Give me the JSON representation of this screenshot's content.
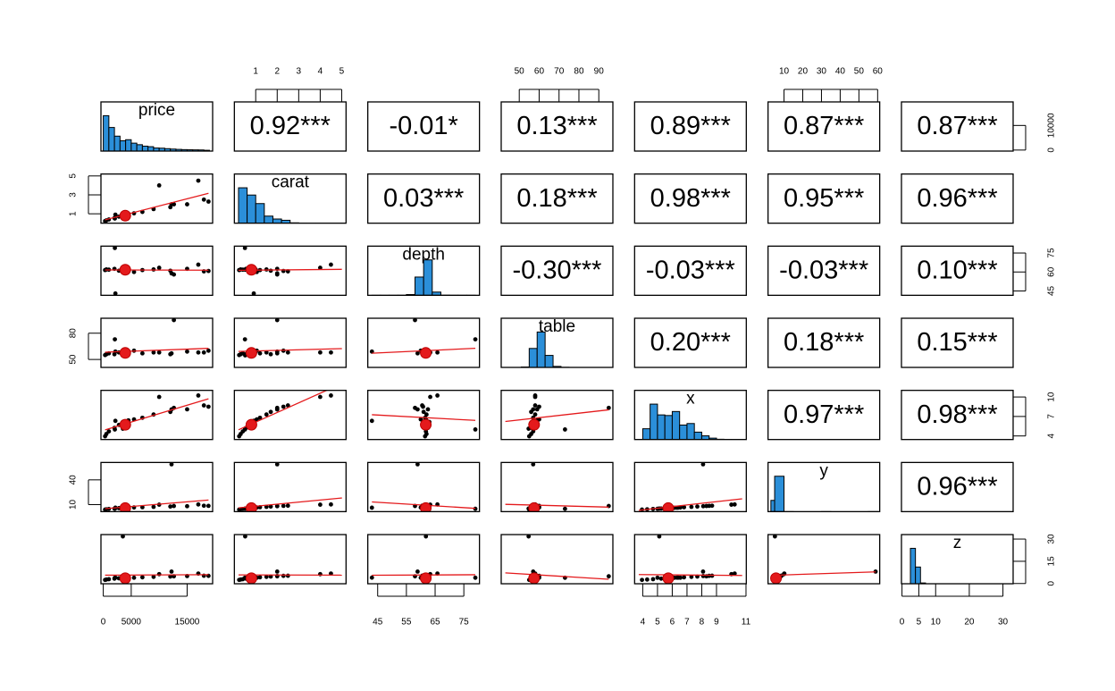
{
  "chart_data": {
    "type": "pairs",
    "variables": [
      "price",
      "carat",
      "depth",
      "table",
      "x",
      "y",
      "z"
    ],
    "ranges": [
      [
        326,
        18823
      ],
      [
        0.2,
        5.01
      ],
      [
        43,
        79
      ],
      [
        43,
        95
      ],
      [
        3.73,
        10.74
      ],
      [
        3.68,
        58.9
      ],
      [
        1.07,
        31.8
      ]
    ],
    "ticks": [
      [
        0,
        5000,
        15000
      ],
      [
        1,
        2,
        3,
        4,
        5
      ],
      [
        45,
        55,
        65,
        75
      ],
      [
        50,
        60,
        70,
        80,
        90
      ],
      [
        4,
        5,
        6,
        7,
        8,
        9,
        11
      ],
      [
        10,
        20,
        30,
        40,
        50,
        60
      ],
      [
        0,
        5,
        10,
        20,
        30
      ]
    ],
    "side_ticks": [
      [
        0,
        10000
      ],
      [
        1,
        3,
        5
      ],
      [
        45,
        60,
        75
      ],
      [
        50,
        80
      ],
      [
        4,
        7,
        10
      ],
      [
        10,
        40
      ],
      [
        0,
        15,
        30
      ]
    ],
    "correlations": {
      "values": [
        0.92,
        -0.01,
        0.13,
        0.89,
        0.87,
        0.87,
        0.03,
        0.18,
        0.98,
        0.95,
        0.96,
        -0.3,
        -0.03,
        -0.03,
        0.1,
        0.2,
        0.18,
        0.15,
        0.97,
        0.98,
        0.96
      ],
      "value_labels": [
        "0.92***",
        "-0.01*",
        "0.13***",
        "0.89***",
        "0.87***",
        "0.87***",
        "0.03***",
        "0.18***",
        "0.98***",
        "0.95***",
        "0.96***",
        "-0.30***",
        "-0.03***",
        "-0.03***",
        "0.10***",
        "0.20***",
        "0.18***",
        "0.15***",
        "0.97***",
        "0.98***",
        "0.96***"
      ]
    },
    "means": [
      3933,
      0.8,
      61.75,
      57.46,
      5.73,
      5.73,
      3.54
    ],
    "histograms": [
      {
        "bins": [
          0,
          1000,
          2000,
          3000,
          4000,
          5000,
          6000,
          7000,
          8000,
          9000,
          10000,
          11000,
          12000,
          13000,
          14000,
          15000,
          16000,
          17000,
          18000,
          19000
        ],
        "counts": [
          14524,
          9683,
          6129,
          4225,
          4665,
          3256,
          2618,
          2010,
          1800,
          1254,
          1182,
          992,
          827,
          695,
          600,
          533,
          495,
          462,
          330
        ]
      },
      {
        "bins": [
          0.2,
          0.6,
          1.0,
          1.4,
          1.8,
          2.2,
          2.6,
          3.0,
          3.4,
          3.8,
          4.2,
          4.6,
          5.0,
          5.2
        ],
        "counts": [
          19500,
          15500,
          10800,
          3900,
          2300,
          1600,
          200,
          60,
          5,
          4,
          3,
          1,
          1
        ]
      },
      {
        "bins": [
          43,
          46,
          49,
          52,
          55,
          58,
          61,
          64,
          67,
          70,
          73,
          76,
          79
        ],
        "counts": [
          3,
          5,
          10,
          50,
          700,
          17000,
          33000,
          3000,
          100,
          20,
          5,
          3
        ]
      },
      {
        "bins": [
          43,
          47,
          51,
          55,
          59,
          63,
          67,
          71,
          75,
          79,
          83,
          87,
          91,
          95
        ],
        "counts": [
          3,
          5,
          300,
          15000,
          28000,
          9500,
          800,
          100,
          15,
          5,
          2,
          1,
          1
        ]
      },
      {
        "bins": [
          3.5,
          4,
          4.5,
          5,
          5.5,
          6,
          6.5,
          7,
          7.5,
          8,
          8.5,
          9,
          9.5,
          10,
          10.5,
          11
        ],
        "counts": [
          20,
          3500,
          11500,
          8000,
          7800,
          9100,
          4700,
          5200,
          2400,
          1200,
          450,
          90,
          15,
          5,
          3
        ]
      },
      {
        "bins": [
          3,
          5,
          10,
          15,
          20,
          25,
          30,
          35,
          40,
          45,
          50,
          55,
          60
        ],
        "counts": [
          13000,
          40900,
          2,
          0,
          0,
          0,
          1,
          0,
          0,
          0,
          0,
          1
        ]
      },
      {
        "bins": [
          1,
          2.5,
          4,
          5.5,
          7,
          10,
          15,
          20,
          25,
          30,
          33
        ],
        "counts": [
          20,
          36000,
          17000,
          800,
          30,
          1,
          0,
          0,
          0,
          1
        ]
      }
    ],
    "observations": [
      [
        326,
        0.23,
        61.5,
        55,
        3.95,
        3.98,
        2.43
      ],
      [
        554,
        0.3,
        62,
        56,
        4.3,
        4.32,
        2.67
      ],
      [
        1000,
        0.4,
        61.8,
        57,
        4.7,
        4.73,
        2.92
      ],
      [
        2000,
        0.55,
        62.5,
        56,
        5.25,
        5.2,
        3.27
      ],
      [
        2800,
        0.7,
        61,
        58,
        5.7,
        5.72,
        3.5
      ],
      [
        3500,
        0.9,
        63,
        57,
        6.15,
        6.1,
        3.86
      ],
      [
        4500,
        1.0,
        62,
        59,
        6.4,
        6.35,
        3.95
      ],
      [
        5500,
        1.05,
        60,
        60,
        6.55,
        6.5,
        3.92
      ],
      [
        7000,
        1.2,
        61.5,
        57,
        6.8,
        6.85,
        4.2
      ],
      [
        9000,
        1.5,
        62,
        58,
        7.3,
        7.25,
        4.5
      ],
      [
        12000,
        1.7,
        61,
        56,
        7.7,
        7.65,
        4.7
      ],
      [
        15000,
        2.0,
        62.5,
        59,
        8.1,
        8.05,
        5.05
      ],
      [
        18000,
        2.5,
        60.5,
        58,
        8.7,
        8.65,
        5.25
      ],
      [
        18823,
        2.29,
        60.8,
        60,
        8.5,
        8.47,
        5.16
      ],
      [
        17000,
        4.5,
        65.8,
        58,
        10.23,
        10.16,
        6.72
      ],
      [
        12631,
        2.0,
        58.0,
        95,
        8.32,
        8.31,
        4.87
      ],
      [
        2075,
        0.5,
        79,
        73,
        5.0,
        4.94,
        3.9
      ],
      [
        12210,
        2.0,
        58.9,
        57,
        8.09,
        58.9,
        8.06
      ],
      [
        3504,
        0.51,
        61.8,
        54.7,
        5.12,
        5.15,
        31.8
      ],
      [
        2167,
        0.91,
        43,
        59,
        6.32,
        6.27,
        3.97
      ],
      [
        10000,
        4.0,
        63.3,
        58,
        10.01,
        9.94,
        6.31
      ]
    ]
  }
}
